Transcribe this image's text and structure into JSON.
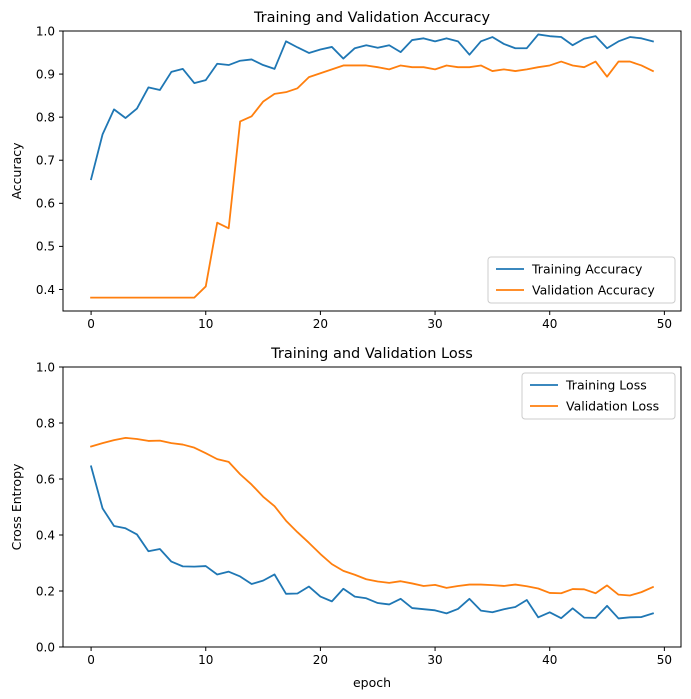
{
  "chart_data": [
    {
      "type": "line",
      "title": "Training and Validation Accuracy",
      "xlabel": "",
      "ylabel": "Accuracy",
      "xlim": [
        -2.45,
        51.45
      ],
      "ylim": [
        0.35,
        1.0
      ],
      "xticks": [
        0,
        10,
        20,
        30,
        40,
        50
      ],
      "yticks": [
        0.4,
        0.5,
        0.6,
        0.7,
        0.8,
        0.9,
        1.0
      ],
      "ytick_labels": [
        "0.4",
        "0.5",
        "0.6",
        "0.7",
        "0.8",
        "0.9",
        "1.0"
      ],
      "grid": false,
      "legend": "lower-right",
      "x": [
        0,
        1,
        2,
        3,
        4,
        5,
        6,
        7,
        8,
        9,
        10,
        11,
        12,
        13,
        14,
        15,
        16,
        17,
        18,
        19,
        20,
        21,
        22,
        23,
        24,
        25,
        26,
        27,
        28,
        29,
        30,
        31,
        32,
        33,
        34,
        35,
        36,
        37,
        38,
        39,
        40,
        41,
        42,
        43,
        44,
        45,
        46,
        47,
        48,
        49
      ],
      "series": [
        {
          "name": "Training Accuracy",
          "color": "#1f77b4",
          "values": [
            0.656,
            0.76,
            0.818,
            0.798,
            0.82,
            0.869,
            0.863,
            0.905,
            0.912,
            0.879,
            0.886,
            0.924,
            0.921,
            0.931,
            0.934,
            0.921,
            0.912,
            0.976,
            0.962,
            0.949,
            0.957,
            0.963,
            0.936,
            0.96,
            0.967,
            0.961,
            0.967,
            0.951,
            0.979,
            0.983,
            0.976,
            0.983,
            0.976,
            0.945,
            0.976,
            0.986,
            0.97,
            0.96,
            0.96,
            0.992,
            0.988,
            0.986,
            0.967,
            0.982,
            0.988,
            0.96,
            0.976,
            0.986,
            0.983,
            0.976
          ]
        },
        {
          "name": "Validation Accuracy",
          "color": "#ff7f0e",
          "values": [
            0.381,
            0.381,
            0.381,
            0.381,
            0.381,
            0.381,
            0.381,
            0.381,
            0.381,
            0.381,
            0.407,
            0.555,
            0.542,
            0.79,
            0.802,
            0.836,
            0.854,
            0.858,
            0.867,
            0.893,
            0.902,
            0.911,
            0.92,
            0.92,
            0.92,
            0.916,
            0.911,
            0.92,
            0.916,
            0.916,
            0.911,
            0.92,
            0.916,
            0.916,
            0.92,
            0.907,
            0.911,
            0.907,
            0.911,
            0.916,
            0.92,
            0.929,
            0.92,
            0.916,
            0.929,
            0.894,
            0.929,
            0.929,
            0.92,
            0.907
          ]
        }
      ]
    },
    {
      "type": "line",
      "title": "Training and Validation Loss",
      "xlabel": "epoch",
      "ylabel": "Cross Entropy",
      "xlim": [
        -2.45,
        51.45
      ],
      "ylim": [
        0.0,
        1.0
      ],
      "xticks": [
        0,
        10,
        20,
        30,
        40,
        50
      ],
      "yticks": [
        0.0,
        0.2,
        0.4,
        0.6,
        0.8,
        1.0
      ],
      "ytick_labels": [
        "0.0",
        "0.2",
        "0.4",
        "0.6",
        "0.8",
        "1.0"
      ],
      "grid": false,
      "legend": "top-right",
      "x": [
        0,
        1,
        2,
        3,
        4,
        5,
        6,
        7,
        8,
        9,
        10,
        11,
        12,
        13,
        14,
        15,
        16,
        17,
        18,
        19,
        20,
        21,
        22,
        23,
        24,
        25,
        26,
        27,
        28,
        29,
        30,
        31,
        32,
        33,
        34,
        35,
        36,
        37,
        38,
        39,
        40,
        41,
        42,
        43,
        44,
        45,
        46,
        47,
        48,
        49
      ],
      "series": [
        {
          "name": "Training Loss",
          "color": "#1f77b4",
          "values": [
            0.645,
            0.495,
            0.432,
            0.424,
            0.402,
            0.342,
            0.35,
            0.305,
            0.288,
            0.287,
            0.289,
            0.259,
            0.269,
            0.252,
            0.225,
            0.237,
            0.259,
            0.19,
            0.191,
            0.216,
            0.18,
            0.163,
            0.208,
            0.18,
            0.174,
            0.157,
            0.152,
            0.172,
            0.139,
            0.135,
            0.131,
            0.12,
            0.136,
            0.172,
            0.13,
            0.124,
            0.135,
            0.143,
            0.168,
            0.106,
            0.124,
            0.103,
            0.138,
            0.105,
            0.104,
            0.147,
            0.102,
            0.106,
            0.107,
            0.12
          ]
        },
        {
          "name": "Validation Loss",
          "color": "#ff7f0e",
          "values": [
            0.716,
            0.728,
            0.739,
            0.747,
            0.743,
            0.736,
            0.737,
            0.728,
            0.723,
            0.712,
            0.692,
            0.671,
            0.661,
            0.617,
            0.58,
            0.537,
            0.503,
            0.451,
            0.41,
            0.372,
            0.332,
            0.296,
            0.272,
            0.258,
            0.242,
            0.234,
            0.229,
            0.235,
            0.227,
            0.218,
            0.222,
            0.211,
            0.218,
            0.223,
            0.223,
            0.221,
            0.218,
            0.223,
            0.217,
            0.209,
            0.193,
            0.192,
            0.207,
            0.206,
            0.192,
            0.22,
            0.187,
            0.184,
            0.196,
            0.214
          ]
        }
      ]
    }
  ]
}
